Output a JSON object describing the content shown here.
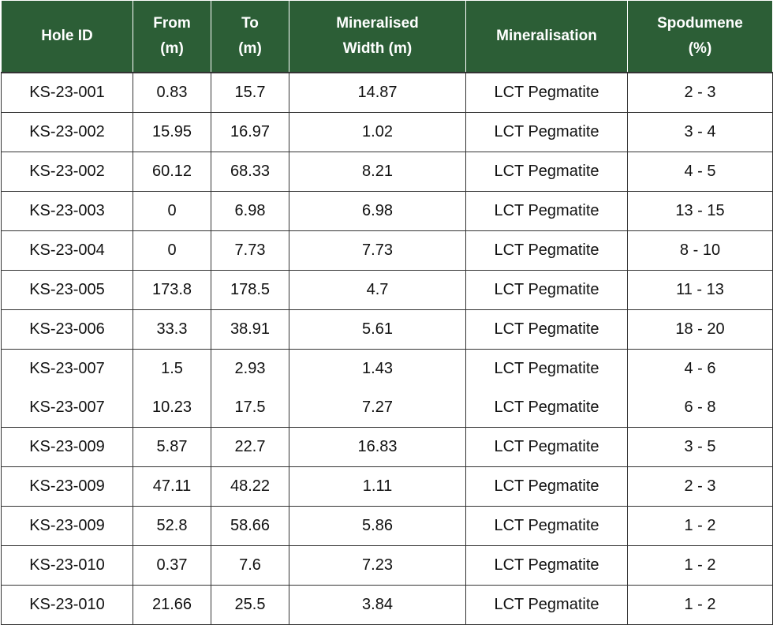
{
  "table": {
    "header": [
      "Hole ID",
      "From\n(m)",
      "To\n(m)",
      "Mineralised\nWidth (m)",
      "Mineralisation",
      "Spodumene\n(%)"
    ],
    "rows": [
      [
        "KS-23-001",
        "0.83",
        "15.7",
        "14.87",
        "LCT Pegmatite",
        "2 - 3"
      ],
      [
        "KS-23-002",
        "15.95",
        "16.97",
        "1.02",
        "LCT Pegmatite",
        "3 - 4"
      ],
      [
        "KS-23-002",
        "60.12",
        "68.33",
        "8.21",
        "LCT Pegmatite",
        "4 - 5"
      ],
      [
        "KS-23-003",
        "0",
        "6.98",
        "6.98",
        "LCT Pegmatite",
        "13 - 15"
      ],
      [
        "KS-23-004",
        "0",
        "7.73",
        "7.73",
        "LCT Pegmatite",
        "8 - 10"
      ],
      [
        "KS-23-005",
        "173.8",
        "178.5",
        "4.7",
        "LCT Pegmatite",
        "11 - 13"
      ],
      [
        "KS-23-006",
        "33.3",
        "38.91",
        "5.61",
        "LCT Pegmatite",
        "18 - 20"
      ],
      [
        "KS-23-007",
        "1.5",
        "2.93",
        "1.43",
        "LCT Pegmatite",
        "4 - 6"
      ],
      [
        "KS-23-007",
        "10.23",
        "17.5",
        "7.27",
        "LCT Pegmatite",
        "6 - 8"
      ],
      [
        "KS-23-009",
        "5.87",
        "22.7",
        "16.83",
        "LCT Pegmatite",
        "3 - 5"
      ],
      [
        "KS-23-009",
        "47.11",
        "48.22",
        "1.11",
        "LCT Pegmatite",
        "2 - 3"
      ],
      [
        "KS-23-009",
        "52.8",
        "58.66",
        "5.86",
        "LCT Pegmatite",
        "1 - 2"
      ],
      [
        "KS-23-010",
        "0.37",
        "7.6",
        "7.23",
        "LCT Pegmatite",
        "1 - 2"
      ],
      [
        "KS-23-010",
        "21.66",
        "25.5",
        "3.84",
        "LCT Pegmatite",
        "1 - 2"
      ]
    ]
  }
}
